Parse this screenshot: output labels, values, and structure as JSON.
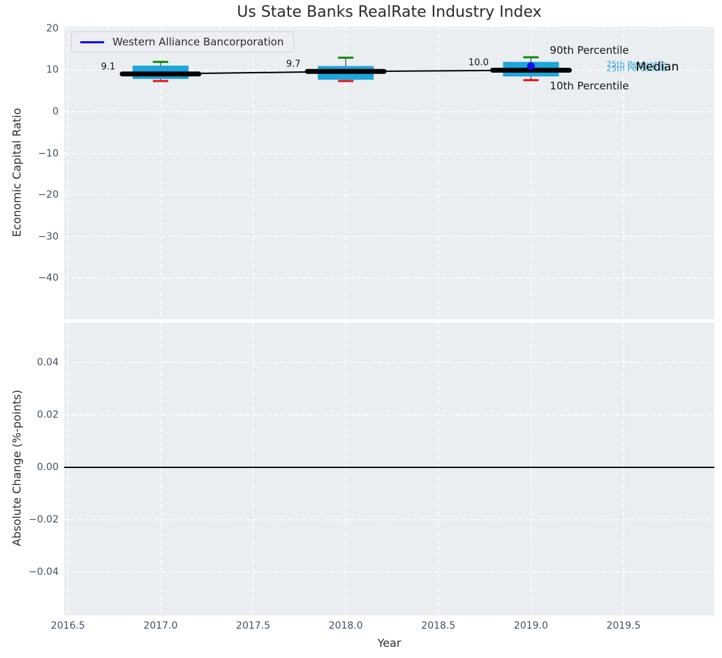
{
  "title": "Us State Banks RealRate Industry Index",
  "legend": {
    "label": "Western Alliance Bancorporation"
  },
  "colors": {
    "plot_bg": "#eaeef0",
    "grid": "#ffffff",
    "box_fill": "#1da5dc",
    "p90_cap": "#0a8f0a",
    "p10_cap": "#ee1111",
    "median_line": "#000000",
    "series_blue": "#0d0def",
    "tick_text": "#415065",
    "cyan_label": "#35a9d9",
    "zero_line": "#000000"
  },
  "top_plot": {
    "ylabel": "Economic Capital Ratio",
    "yticks": [
      {
        "v": 20,
        "label": "20"
      },
      {
        "v": 10,
        "label": "10"
      },
      {
        "v": 0,
        "label": "0"
      },
      {
        "v": -10,
        "label": "−10"
      },
      {
        "v": -20,
        "label": "−20"
      },
      {
        "v": -30,
        "label": "−30"
      },
      {
        "v": -40,
        "label": "−40"
      }
    ],
    "percentile_labels": {
      "p90": "90th Percentile",
      "p75": "75th Percentile",
      "p25": "25th Percentile",
      "median": "Median",
      "p10": "10th Percentile"
    }
  },
  "bottom_plot": {
    "ylabel": "Absolute Change (%-points)",
    "yticks": [
      {
        "v": 0.04,
        "label": "0.04"
      },
      {
        "v": 0.02,
        "label": "0.02"
      },
      {
        "v": 0,
        "label": "0.00"
      },
      {
        "v": -0.02,
        "label": "−0.02"
      },
      {
        "v": -0.04,
        "label": "−0.04"
      }
    ]
  },
  "xaxis": {
    "label": "Year",
    "ticks": [
      {
        "v": 2016.5,
        "label": "2016.5"
      },
      {
        "v": 2017.0,
        "label": "2017.0"
      },
      {
        "v": 2017.5,
        "label": "2017.5"
      },
      {
        "v": 2018.0,
        "label": "2018.0"
      },
      {
        "v": 2018.5,
        "label": "2018.5"
      },
      {
        "v": 2019.0,
        "label": "2019.0"
      },
      {
        "v": 2019.5,
        "label": "2019.5"
      }
    ]
  },
  "chart_data": [
    {
      "type": "box",
      "title": "Us State Banks RealRate Industry Index",
      "xlabel": "Year",
      "ylabel": "Economic Capital Ratio",
      "xlim": [
        2016.48,
        2019.99
      ],
      "ylim": [
        -49.9,
        20.5
      ],
      "x": [
        2017,
        2018,
        2019
      ],
      "series": [
        {
          "name": "Median",
          "values": [
            9.1,
            9.7,
            10.0
          ]
        },
        {
          "name": "25th Percentile",
          "values": [
            7.9,
            7.7,
            8.5
          ]
        },
        {
          "name": "75th Percentile",
          "values": [
            11.1,
            11.0,
            12.0
          ]
        },
        {
          "name": "10th Percentile",
          "values": [
            7.4,
            7.4,
            7.6
          ]
        },
        {
          "name": "90th Percentile",
          "values": [
            12.0,
            13.0,
            13.1
          ]
        },
        {
          "name": "Western Alliance Bancorporation",
          "values": [
            null,
            null,
            11.0
          ]
        }
      ],
      "annotations": [
        "9.1",
        "9.7",
        "10.0"
      ],
      "legend_position": "upper left",
      "grid": true
    },
    {
      "type": "line",
      "xlabel": "Year",
      "ylabel": "Absolute Change (%-points)",
      "xlim": [
        2016.48,
        2019.99
      ],
      "ylim": [
        -0.0565,
        0.0552
      ],
      "series": [],
      "axhline": 0.0,
      "grid": true
    }
  ]
}
